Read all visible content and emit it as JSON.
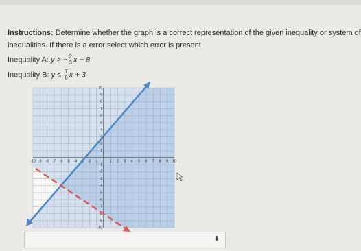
{
  "instructions": {
    "label": "Instructions:",
    "lines": [
      "Determine whether the graph is a correct representation of the given inequality or system of",
      "inequalities. If there is a error select which error is present."
    ]
  },
  "inequalities": [
    {
      "label": "Inequality A:",
      "lhs": "y >",
      "sign": "−",
      "num": "2",
      "den": "3",
      "rest": "x − 8"
    },
    {
      "label": "Inequality B:",
      "lhs": "y ≤",
      "sign": "",
      "num": "7",
      "den": "6",
      "rest": "x + 3"
    }
  ],
  "graph": {
    "xticks": [
      -10,
      -9,
      -8,
      -7,
      -6,
      -5,
      -4,
      -3,
      -2,
      -1,
      1,
      2,
      3,
      4,
      5,
      6,
      7,
      8,
      9,
      10
    ],
    "yticks": [
      -10,
      -9,
      -8,
      -7,
      -6,
      -5,
      -4,
      -3,
      -2,
      -1,
      1,
      2,
      3,
      4,
      5,
      6,
      7,
      8,
      9,
      10
    ]
  }
}
